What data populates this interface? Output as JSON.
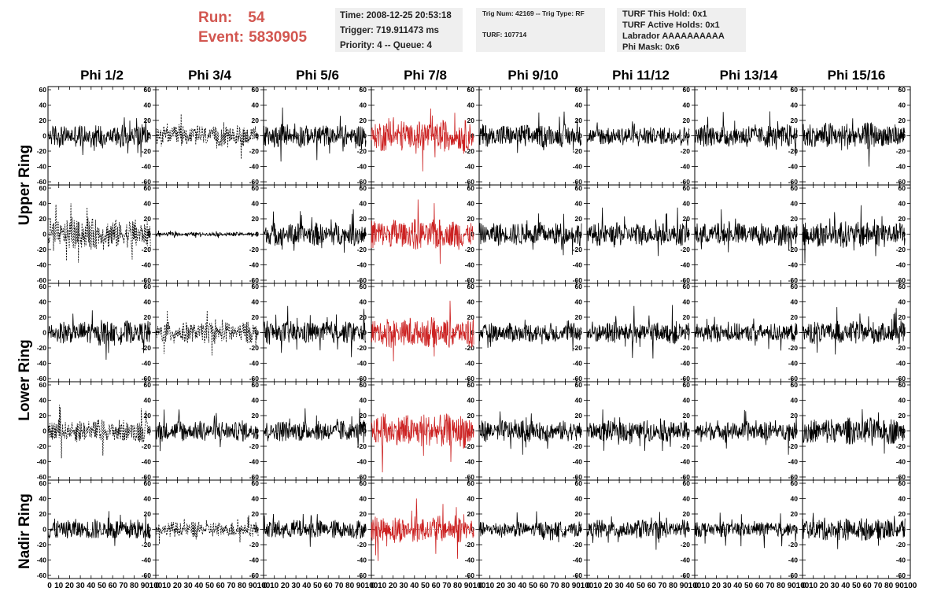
{
  "header": {
    "run_label": "Run:",
    "run_value": "54",
    "event_label": "Event:",
    "event_value": "5830905",
    "time": "Time: 2008-12-25 20:53:18",
    "trigger": "Trigger: 719.911473 ms",
    "priority_queue": "Priority: 4 -- Queue: 4",
    "trig_num_type": "Trig Num: 42169 -- Trig Type: RF",
    "turf": "TURF: 107714",
    "turf_this_hold": "TURF This Hold: 0x1",
    "turf_active_holds": "TURF Active Holds: 0x1",
    "labrador": "Labrador AAAAAAAAAA",
    "phi_mask": "Phi Mask: 0x6"
  },
  "columns": [
    "Phi 1/2",
    "Phi 3/4",
    "Phi 5/6",
    "Phi 7/8",
    "Phi 9/10",
    "Phi 11/12",
    "Phi 13/14",
    "Phi 15/16"
  ],
  "row_groups": [
    {
      "label": "Upper Ring"
    },
    {
      "label": "Lower Ring"
    },
    {
      "label": "Nadir Ring"
    }
  ],
  "colors": {
    "header_accent": "#d25650",
    "trace_default": "#000000",
    "trace_highlight": "#cc2222",
    "info_box_bg": "#efefef"
  },
  "chart_data": {
    "type": "line",
    "rows": 5,
    "cols": 8,
    "xlim": [
      0,
      100
    ],
    "ylim": [
      -60,
      60
    ],
    "y_ticks": [
      60,
      40,
      20,
      0,
      -20,
      -40,
      -60
    ],
    "y_tick_labels": [
      "60",
      "40",
      "20",
      "0",
      "-20",
      "-40",
      "-60"
    ],
    "x_tick_labels": [
      "0",
      "10",
      "20",
      "30",
      "40",
      "50",
      "60",
      "70",
      "80",
      "90",
      "100"
    ],
    "highlight_column": 3,
    "dashed_panels": [
      [
        0,
        1
      ],
      [
        1,
        0
      ],
      [
        2,
        1
      ],
      [
        3,
        0
      ],
      [
        4,
        1
      ]
    ],
    "amplitudes": [
      [
        12,
        11,
        12,
        16,
        12,
        10,
        12,
        14
      ],
      [
        16,
        2,
        12,
        16,
        12,
        12,
        12,
        14
      ],
      [
        12,
        11,
        12,
        16,
        10,
        12,
        10,
        12
      ],
      [
        12,
        11,
        11,
        18,
        11,
        11,
        10,
        14
      ],
      [
        11,
        8,
        10,
        14,
        8,
        10,
        8,
        12
      ]
    ]
  }
}
